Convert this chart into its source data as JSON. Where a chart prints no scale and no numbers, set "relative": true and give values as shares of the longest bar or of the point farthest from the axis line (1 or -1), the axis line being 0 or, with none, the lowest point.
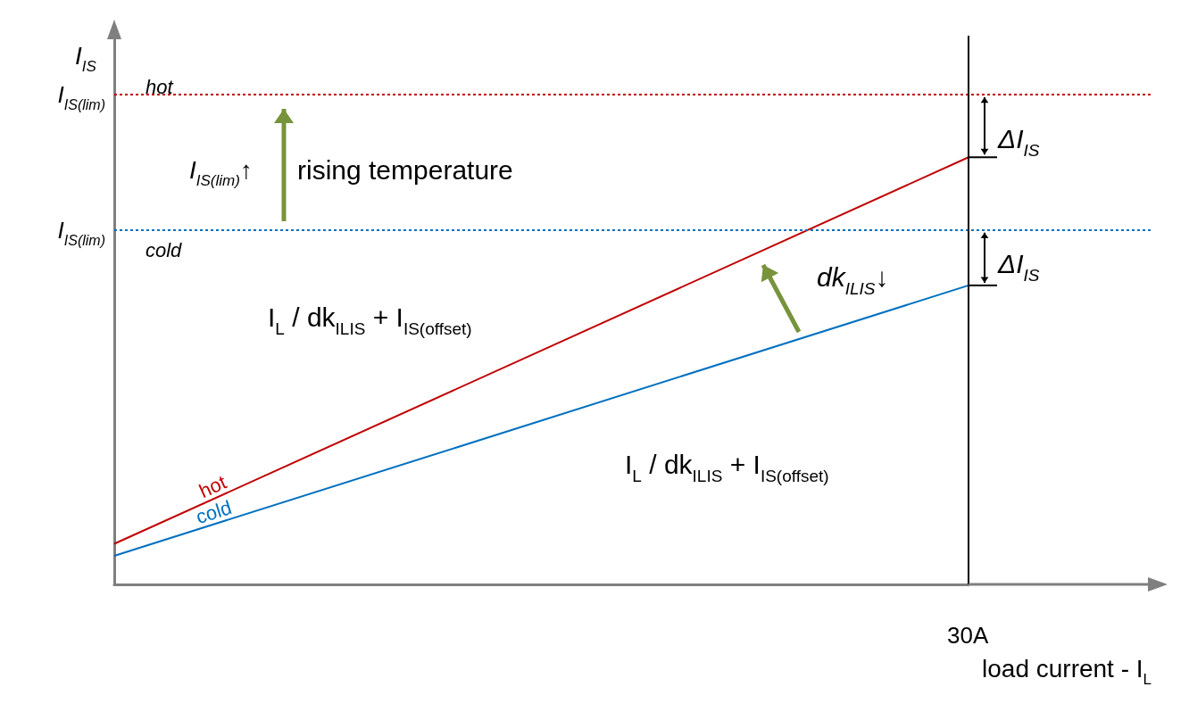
{
  "chart_data": {
    "type": "line",
    "relative": true,
    "xlabel": "load current - I$_{L}$",
    "ylabel": "I$_{IS}$",
    "categories": [
      null,
      null
    ],
    "series": [
      {
        "name": "hot",
        "color": "#c00000",
        "values": [
          0.095,
          1
        ]
      },
      {
        "name": "cold",
        "color": "#0070c0",
        "values": [
          0.067,
          0.7
        ]
      }
    ],
    "ref_lines": [
      {
        "axis": "y",
        "value": 1.147,
        "label": "I$_{IS(lim)}$",
        "color": "#c00000",
        "line_style": "dotted"
      },
      {
        "axis": "y",
        "value": 0.83,
        "label": "I$_{IS(lim)}$",
        "color": "#0070c0",
        "line_style": "dotted"
      }
    ],
    "annotations": [
      "hot",
      "cold",
      "I$_{IS(lim)}$↑",
      "rising temperature",
      "dk$_{ILIS}$↓",
      "ΔI$_{IS}$",
      "ΔI$_{IS}$",
      "I$_{L}$ / dk$_{ILIS}$ + I$_{IS(offset)}$",
      "I$_{L}$ / dk$_{ILIS}$ + I$_{IS(offset)}$",
      "30A"
    ],
    "marker": "none",
    "line_style": "solid"
  }
}
